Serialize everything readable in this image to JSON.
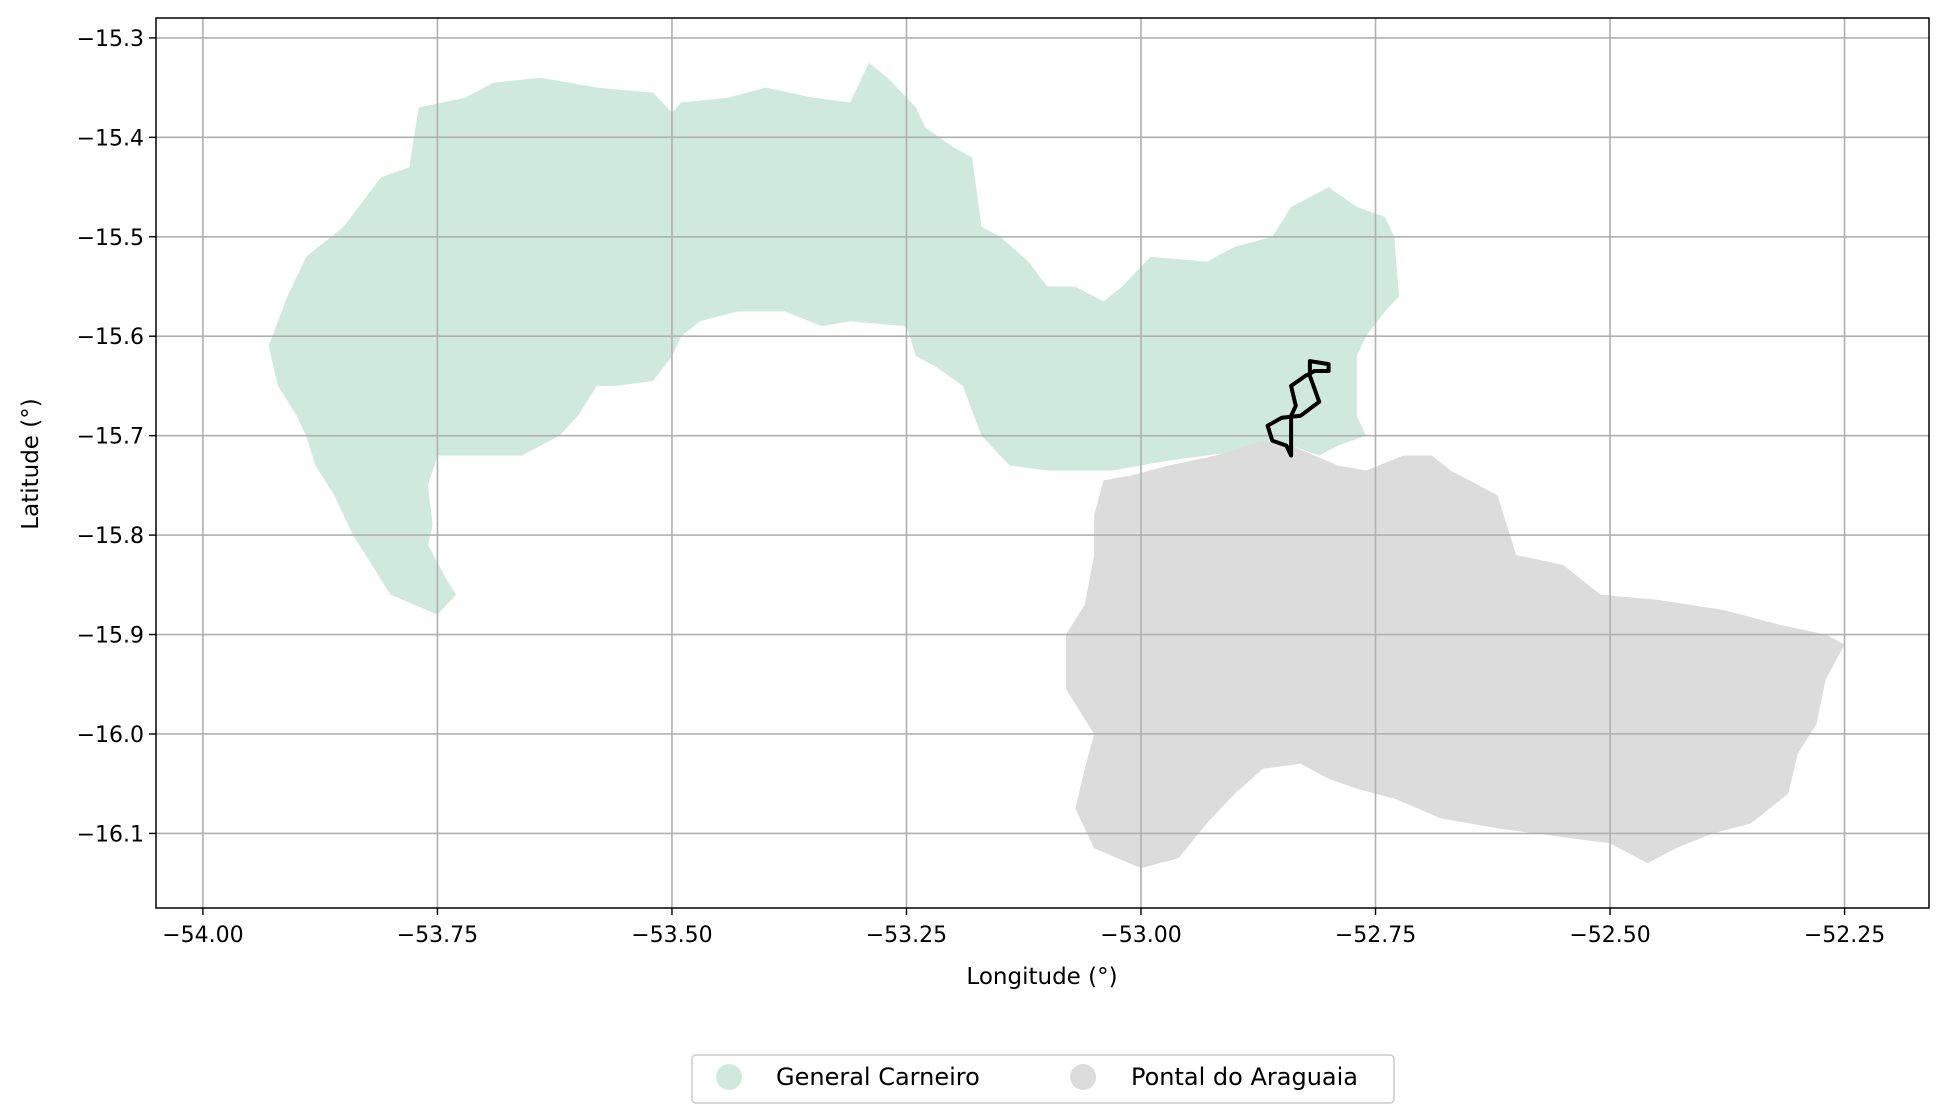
{
  "chart_data": {
    "type": "map",
    "title": "",
    "xlabel": "Longitude (°)",
    "ylabel": "Latitude (°)",
    "xlim": [
      -54.05,
      -52.16
    ],
    "ylim": [
      -16.175,
      -15.28
    ],
    "grid": true,
    "legend_placement": "bottom-center",
    "x_ticks": [
      {
        "value": -54.0,
        "label": "−54.00"
      },
      {
        "value": -53.75,
        "label": "−53.75"
      },
      {
        "value": -53.5,
        "label": "−53.50"
      },
      {
        "value": -53.25,
        "label": "−53.25"
      },
      {
        "value": -53.0,
        "label": "−53.00"
      },
      {
        "value": -52.75,
        "label": "−52.75"
      },
      {
        "value": -52.5,
        "label": "−52.50"
      },
      {
        "value": -52.25,
        "label": "−52.25"
      }
    ],
    "y_ticks": [
      {
        "value": -15.3,
        "label": "−15.3"
      },
      {
        "value": -15.4,
        "label": "−15.4"
      },
      {
        "value": -15.5,
        "label": "−15.5"
      },
      {
        "value": -15.6,
        "label": "−15.6"
      },
      {
        "value": -15.7,
        "label": "−15.7"
      },
      {
        "value": -15.8,
        "label": "−15.8"
      },
      {
        "value": -15.9,
        "label": "−15.9"
      },
      {
        "value": -16.0,
        "label": "−16.0"
      },
      {
        "value": -16.1,
        "label": "−16.1"
      }
    ],
    "regions": [
      {
        "name": "General Carneiro",
        "color": "#cfeadd",
        "polygon": [
          [
            -53.93,
            -15.61
          ],
          [
            -53.91,
            -15.56
          ],
          [
            -53.89,
            -15.52
          ],
          [
            -53.85,
            -15.49
          ],
          [
            -53.81,
            -15.44
          ],
          [
            -53.78,
            -15.43
          ],
          [
            -53.77,
            -15.37
          ],
          [
            -53.72,
            -15.36
          ],
          [
            -53.69,
            -15.345
          ],
          [
            -53.64,
            -15.34
          ],
          [
            -53.58,
            -15.35
          ],
          [
            -53.52,
            -15.355
          ],
          [
            -53.5,
            -15.375
          ],
          [
            -53.49,
            -15.365
          ],
          [
            -53.44,
            -15.36
          ],
          [
            -53.4,
            -15.35
          ],
          [
            -53.35,
            -15.36
          ],
          [
            -53.31,
            -15.365
          ],
          [
            -53.29,
            -15.325
          ],
          [
            -53.27,
            -15.34
          ],
          [
            -53.24,
            -15.37
          ],
          [
            -53.23,
            -15.39
          ],
          [
            -53.2,
            -15.41
          ],
          [
            -53.18,
            -15.42
          ],
          [
            -53.17,
            -15.49
          ],
          [
            -53.15,
            -15.5
          ],
          [
            -53.12,
            -15.525
          ],
          [
            -53.1,
            -15.55
          ],
          [
            -53.07,
            -15.55
          ],
          [
            -53.04,
            -15.565
          ],
          [
            -53.02,
            -15.55
          ],
          [
            -52.99,
            -15.52
          ],
          [
            -52.93,
            -15.525
          ],
          [
            -52.9,
            -15.51
          ],
          [
            -52.86,
            -15.5
          ],
          [
            -52.84,
            -15.47
          ],
          [
            -52.82,
            -15.46
          ],
          [
            -52.8,
            -15.45
          ],
          [
            -52.77,
            -15.47
          ],
          [
            -52.74,
            -15.48
          ],
          [
            -52.73,
            -15.5
          ],
          [
            -52.725,
            -15.56
          ],
          [
            -52.74,
            -15.575
          ],
          [
            -52.76,
            -15.6
          ],
          [
            -52.77,
            -15.62
          ],
          [
            -52.77,
            -15.68
          ],
          [
            -52.76,
            -15.7
          ],
          [
            -52.79,
            -15.71
          ],
          [
            -52.81,
            -15.72
          ],
          [
            -52.84,
            -15.71
          ],
          [
            -52.86,
            -15.705
          ],
          [
            -52.89,
            -15.715
          ],
          [
            -52.93,
            -15.72
          ],
          [
            -52.97,
            -15.725
          ],
          [
            -53.0,
            -15.73
          ],
          [
            -53.03,
            -15.735
          ],
          [
            -53.06,
            -15.735
          ],
          [
            -53.1,
            -15.735
          ],
          [
            -53.14,
            -15.73
          ],
          [
            -53.17,
            -15.7
          ],
          [
            -53.19,
            -15.65
          ],
          [
            -53.22,
            -15.63
          ],
          [
            -53.24,
            -15.62
          ],
          [
            -53.25,
            -15.59
          ],
          [
            -53.31,
            -15.585
          ],
          [
            -53.34,
            -15.59
          ],
          [
            -53.38,
            -15.575
          ],
          [
            -53.43,
            -15.575
          ],
          [
            -53.47,
            -15.585
          ],
          [
            -53.49,
            -15.6
          ],
          [
            -53.5,
            -15.62
          ],
          [
            -53.52,
            -15.645
          ],
          [
            -53.56,
            -15.65
          ],
          [
            -53.58,
            -15.65
          ],
          [
            -53.59,
            -15.665
          ],
          [
            -53.6,
            -15.68
          ],
          [
            -53.62,
            -15.7
          ],
          [
            -53.66,
            -15.72
          ],
          [
            -53.72,
            -15.72
          ],
          [
            -53.75,
            -15.72
          ],
          [
            -53.76,
            -15.75
          ],
          [
            -53.755,
            -15.79
          ],
          [
            -53.76,
            -15.81
          ],
          [
            -53.74,
            -15.845
          ],
          [
            -53.73,
            -15.86
          ],
          [
            -53.75,
            -15.88
          ],
          [
            -53.8,
            -15.86
          ],
          [
            -53.82,
            -15.83
          ],
          [
            -53.84,
            -15.8
          ],
          [
            -53.86,
            -15.76
          ],
          [
            -53.88,
            -15.73
          ],
          [
            -53.89,
            -15.7
          ],
          [
            -53.9,
            -15.68
          ],
          [
            -53.92,
            -15.65
          ]
        ]
      },
      {
        "name": "Pontal do Araguaia",
        "color": "#dcdcdc",
        "polygon": [
          [
            -53.04,
            -15.745
          ],
          [
            -53.01,
            -15.74
          ],
          [
            -52.97,
            -15.73
          ],
          [
            -52.92,
            -15.72
          ],
          [
            -52.87,
            -15.705
          ],
          [
            -52.84,
            -15.71
          ],
          [
            -52.79,
            -15.73
          ],
          [
            -52.76,
            -15.735
          ],
          [
            -52.72,
            -15.72
          ],
          [
            -52.69,
            -15.72
          ],
          [
            -52.67,
            -15.735
          ],
          [
            -52.62,
            -15.76
          ],
          [
            -52.61,
            -15.79
          ],
          [
            -52.6,
            -15.82
          ],
          [
            -52.55,
            -15.83
          ],
          [
            -52.51,
            -15.86
          ],
          [
            -52.45,
            -15.865
          ],
          [
            -52.38,
            -15.875
          ],
          [
            -52.32,
            -15.89
          ],
          [
            -52.27,
            -15.9
          ],
          [
            -52.25,
            -15.91
          ],
          [
            -52.27,
            -15.945
          ],
          [
            -52.28,
            -15.99
          ],
          [
            -52.3,
            -16.02
          ],
          [
            -52.31,
            -16.06
          ],
          [
            -52.35,
            -16.09
          ],
          [
            -52.39,
            -16.1
          ],
          [
            -52.43,
            -16.115
          ],
          [
            -52.46,
            -16.13
          ],
          [
            -52.5,
            -16.11
          ],
          [
            -52.54,
            -16.105
          ],
          [
            -52.58,
            -16.1
          ],
          [
            -52.62,
            -16.095
          ],
          [
            -52.68,
            -16.085
          ],
          [
            -52.73,
            -16.065
          ],
          [
            -52.77,
            -16.055
          ],
          [
            -52.8,
            -16.045
          ],
          [
            -52.83,
            -16.03
          ],
          [
            -52.87,
            -16.035
          ],
          [
            -52.9,
            -16.06
          ],
          [
            -52.93,
            -16.09
          ],
          [
            -52.96,
            -16.125
          ],
          [
            -53.0,
            -16.135
          ],
          [
            -53.05,
            -16.115
          ],
          [
            -53.07,
            -16.075
          ],
          [
            -53.06,
            -16.035
          ],
          [
            -53.05,
            -16.0
          ],
          [
            -53.08,
            -15.955
          ],
          [
            -53.08,
            -15.9
          ],
          [
            -53.06,
            -15.87
          ],
          [
            -53.05,
            -15.82
          ],
          [
            -53.05,
            -15.78
          ]
        ]
      }
    ],
    "outline": {
      "color": "#000000",
      "polygon": [
        [
          -52.84,
          -15.72
        ],
        [
          -52.845,
          -15.71
        ],
        [
          -52.86,
          -15.705
        ],
        [
          -52.865,
          -15.69
        ],
        [
          -52.85,
          -15.682
        ],
        [
          -52.83,
          -15.68
        ],
        [
          -52.81,
          -15.666
        ],
        [
          -52.82,
          -15.64
        ],
        [
          -52.82,
          -15.625
        ],
        [
          -52.8,
          -15.628
        ],
        [
          -52.8,
          -15.635
        ],
        [
          -52.815,
          -15.635
        ],
        [
          -52.825,
          -15.64
        ],
        [
          -52.84,
          -15.65
        ],
        [
          -52.835,
          -15.67
        ],
        [
          -52.84,
          -15.68
        ],
        [
          -52.84,
          -15.7
        ]
      ]
    }
  },
  "legend": {
    "items": [
      {
        "label": "General Carneiro",
        "color": "#cfeadd"
      },
      {
        "label": "Pontal do Araguaia",
        "color": "#dcdcdc"
      }
    ]
  }
}
